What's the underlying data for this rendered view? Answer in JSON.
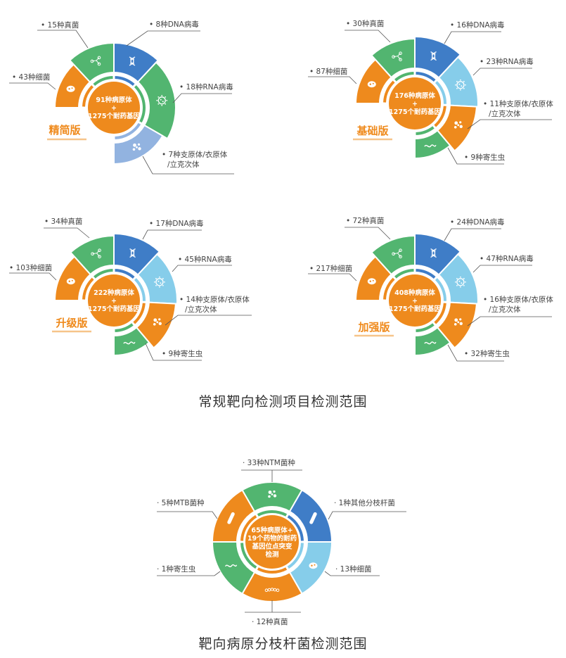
{
  "colors": {
    "orange": "#ee8a1d",
    "green": "#52b570",
    "blue": "#3f7dc7",
    "light_blue": "#86cdea",
    "periwinkle": "#92b3e0",
    "label_line": "#555555",
    "title": "#ef8a1c"
  },
  "captions": {
    "routine": "常规靶向检测项目检测范围",
    "mycobacterium": "靶向病原分枝杆菌检测范围"
  },
  "diagrams": [
    {
      "title": "精简版",
      "center": [
        "91种病原体",
        "+",
        "1275个耐药基因"
      ],
      "segments": [
        {
          "label": [
            "• 8种DNA病毒"
          ],
          "color": "blue",
          "icon": "dna-icon"
        },
        {
          "label": [
            "• 18种RNA病毒"
          ],
          "color": "green",
          "icon": "virus-icon"
        },
        {
          "label": [
            "• 7种支原体/衣原体",
            "/立克次体"
          ],
          "color": "periwinkle",
          "icon": "dots-icon"
        },
        {
          "label": [
            "• 43种细菌"
          ],
          "color": "orange",
          "icon": "bacterium-icon"
        },
        {
          "label": [
            "• 15种真菌"
          ],
          "color": "green",
          "icon": "molecule-icon"
        }
      ]
    },
    {
      "title": "基础版",
      "center": [
        "176种病原体",
        "+",
        "1275个耐药基因"
      ],
      "segments": [
        {
          "label": [
            "• 16种DNA病毒"
          ],
          "color": "blue",
          "icon": "dna-icon"
        },
        {
          "label": [
            "• 23种RNA病毒"
          ],
          "color": "light_blue",
          "icon": "virus-icon"
        },
        {
          "label": [
            "• 11种支原体/衣原体",
            "/立克次体"
          ],
          "color": "orange",
          "icon": "dots-icon"
        },
        {
          "label": [
            "• 9种寄生虫"
          ],
          "color": "green",
          "icon": "worm-icon"
        },
        {
          "label": [
            "• 87种细菌"
          ],
          "color": "orange",
          "icon": "bacterium-icon"
        },
        {
          "label": [
            "• 30种真菌"
          ],
          "color": "green",
          "icon": "molecule-icon"
        }
      ]
    },
    {
      "title": "升级版",
      "center": [
        "222种病原体",
        "+",
        "1275个耐药基因"
      ],
      "segments": [
        {
          "label": [
            "• 17种DNA病毒"
          ],
          "color": "blue",
          "icon": "dna-icon"
        },
        {
          "label": [
            "• 45种RNA病毒"
          ],
          "color": "light_blue",
          "icon": "virus-icon"
        },
        {
          "label": [
            "• 14种支原体/衣原体",
            "/立克次体"
          ],
          "color": "orange",
          "icon": "dots-icon"
        },
        {
          "label": [
            "• 9种寄生虫"
          ],
          "color": "green",
          "icon": "worm-icon"
        },
        {
          "label": [
            "• 103种细菌"
          ],
          "color": "orange",
          "icon": "bacterium-icon"
        },
        {
          "label": [
            "• 34种真菌"
          ],
          "color": "green",
          "icon": "molecule-icon"
        }
      ]
    },
    {
      "title": "加强版",
      "center": [
        "408种病原体",
        "+",
        "1275个耐药基因"
      ],
      "segments": [
        {
          "label": [
            "• 24种DNA病毒"
          ],
          "color": "blue",
          "icon": "dna-icon"
        },
        {
          "label": [
            "• 47种RNA病毒"
          ],
          "color": "light_blue",
          "icon": "virus-icon"
        },
        {
          "label": [
            "• 16种支原体/衣原体",
            "/立克次体"
          ],
          "color": "orange",
          "icon": "dots-icon"
        },
        {
          "label": [
            "• 32种寄生虫"
          ],
          "color": "green",
          "icon": "worm-icon"
        },
        {
          "label": [
            "• 217种细菌"
          ],
          "color": "orange",
          "icon": "bacterium-icon"
        },
        {
          "label": [
            "• 72种真菌"
          ],
          "color": "green",
          "icon": "molecule-icon"
        }
      ]
    },
    {
      "title": "",
      "center": [
        "65种病原体+",
        "19个药物的耐药",
        "基因位点突变",
        "检测"
      ],
      "segments": [
        {
          "label": [
            "· 33种NTM菌种"
          ],
          "color": "green",
          "icon": "dots-icon"
        },
        {
          "label": [
            "· 1种其他分枝杆菌"
          ],
          "color": "blue",
          "icon": "rod-icon"
        },
        {
          "label": [
            "· 13种细菌"
          ],
          "color": "light_blue",
          "icon": "bacterium-icon"
        },
        {
          "label": [
            "· 12种真菌"
          ],
          "color": "orange",
          "icon": "chain-icon"
        },
        {
          "label": [
            "· 1种寄生虫"
          ],
          "color": "green",
          "icon": "worm-icon"
        },
        {
          "label": [
            "· 5种MTB菌种"
          ],
          "color": "orange",
          "icon": "rod-icon"
        }
      ]
    }
  ]
}
